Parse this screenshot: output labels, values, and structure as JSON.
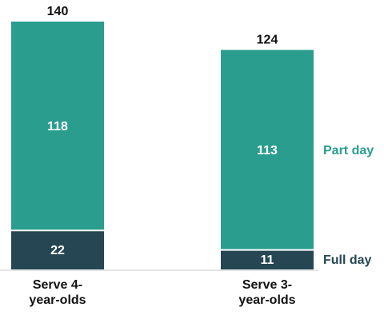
{
  "chart_data": {
    "type": "stacked-bar",
    "categories": [
      "Serve 4-year-olds",
      "Serve 3-year-olds"
    ],
    "series": [
      {
        "name": "Full day",
        "color": "#264653",
        "values": [
          22,
          11
        ]
      },
      {
        "name": "Part day",
        "color": "#2a9d8f",
        "values": [
          118,
          113
        ]
      }
    ],
    "totals": [
      140,
      124
    ]
  }
}
